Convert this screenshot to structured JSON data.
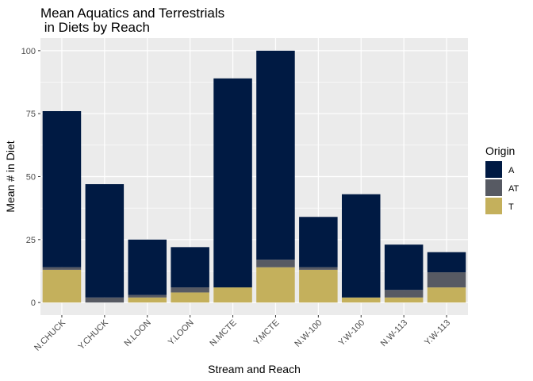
{
  "chart_data": {
    "type": "bar",
    "stacked": true,
    "title_lines": [
      "Mean Aquatics and Terrestrials",
      " in Diets by Reach"
    ],
    "xlabel": "Stream and Reach",
    "ylabel": "Mean # in Diet",
    "categories": [
      "N.CHUCK",
      "Y.CHUCK",
      "N.LOON",
      "Y.LOON",
      "N.MCTE",
      "Y.MCTE",
      "N.W-100",
      "Y.W-100",
      "N.W-113",
      "Y.W-113"
    ],
    "yticks": [
      0,
      25,
      50,
      75,
      100
    ],
    "ylim": [
      -5,
      105
    ],
    "grid": true,
    "legend": {
      "title": "Origin",
      "placement": "right"
    },
    "series": [
      {
        "name": "T",
        "color": "#C4B05C",
        "values": [
          13,
          0,
          2,
          4,
          6,
          14,
          13,
          2,
          2,
          6
        ]
      },
      {
        "name": "AT",
        "color": "#575A63",
        "values": [
          1,
          2,
          1,
          2,
          0,
          3,
          1,
          0,
          3,
          6
        ]
      },
      {
        "name": "A",
        "color": "#001A43",
        "values": [
          62,
          45,
          22,
          16,
          83,
          83,
          20,
          41,
          18,
          8
        ]
      }
    ],
    "legend_order": [
      "A",
      "AT",
      "T"
    ],
    "panel_background": "#EBEBEB",
    "grid_color": "#FFFFFF"
  }
}
